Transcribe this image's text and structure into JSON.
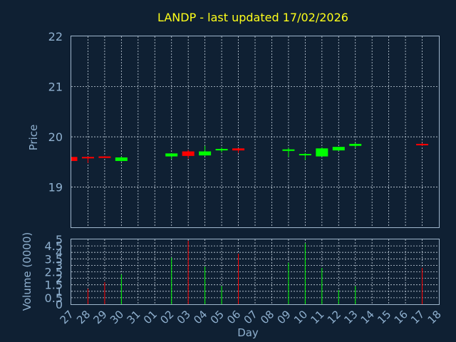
{
  "chart_data": {
    "type": "candlestick",
    "title": "LANDP - last updated 17/02/2026",
    "xlabel": "Day",
    "price_axis": {
      "label": "Price",
      "ylim": [
        18.2,
        22
      ],
      "ticks": [
        "19",
        "20",
        "21",
        "22"
      ]
    },
    "volume_axis": {
      "label": "Volume (0000)",
      "ylim": [
        0,
        5
      ],
      "ticks": [
        "0",
        "0.5",
        "1",
        "1.5",
        "2",
        "2.5",
        "3",
        "3.5",
        "4",
        "4.5",
        "5"
      ]
    },
    "x_ticks": [
      "27",
      "28",
      "29",
      "30",
      "31",
      "01",
      "02",
      "03",
      "04",
      "05",
      "06",
      "07",
      "08",
      "09",
      "10",
      "11",
      "12",
      "13",
      "14",
      "15",
      "16",
      "17",
      "18"
    ],
    "grid": true,
    "colors": {
      "up": "#00ff00",
      "down": "#ff0000",
      "background": "#0f2033",
      "title": "#ffff1a",
      "axis_text": "#8fb0cf"
    },
    "candles": [
      {
        "day": "27",
        "open": 19.6,
        "high": 19.6,
        "low": 19.52,
        "close": 19.52,
        "volume": 0
      },
      {
        "day": "28",
        "open": 19.6,
        "high": 19.61,
        "low": 19.48,
        "close": 19.59,
        "volume": 1.2
      },
      {
        "day": "29",
        "open": 19.61,
        "high": 19.62,
        "low": 19.58,
        "close": 19.58,
        "volume": 1.7
      },
      {
        "day": "30",
        "open": 19.52,
        "high": 19.61,
        "low": 19.51,
        "close": 19.59,
        "volume": 2.3
      },
      {
        "day": "02",
        "open": 19.61,
        "high": 19.67,
        "low": 19.56,
        "close": 19.67,
        "volume": 3.6
      },
      {
        "day": "03",
        "open": 19.71,
        "high": 19.74,
        "low": 19.57,
        "close": 19.62,
        "volume": 4.9
      },
      {
        "day": "04",
        "open": 19.63,
        "high": 19.82,
        "low": 19.62,
        "close": 19.71,
        "volume": 2.9
      },
      {
        "day": "05",
        "open": 19.73,
        "high": 19.79,
        "low": 19.69,
        "close": 19.76,
        "volume": 1.4
      },
      {
        "day": "06",
        "open": 19.77,
        "high": 19.77,
        "low": 19.68,
        "close": 19.73,
        "volume": 3.9
      },
      {
        "day": "09",
        "open": 19.72,
        "high": 19.78,
        "low": 19.6,
        "close": 19.75,
        "volume": 3.2
      },
      {
        "day": "10",
        "open": 19.64,
        "high": 19.68,
        "low": 19.54,
        "close": 19.66,
        "volume": 4.7
      },
      {
        "day": "11",
        "open": 19.61,
        "high": 19.79,
        "low": 19.61,
        "close": 19.77,
        "volume": 2.8
      },
      {
        "day": "12",
        "open": 19.73,
        "high": 19.8,
        "low": 19.72,
        "close": 19.8,
        "volume": 1.1
      },
      {
        "day": "13",
        "open": 19.82,
        "high": 19.88,
        "low": 19.78,
        "close": 19.86,
        "volume": 1.4
      },
      {
        "day": "17",
        "open": 19.86,
        "high": 19.88,
        "low": 19.82,
        "close": 19.84,
        "volume": 2.8
      }
    ]
  }
}
